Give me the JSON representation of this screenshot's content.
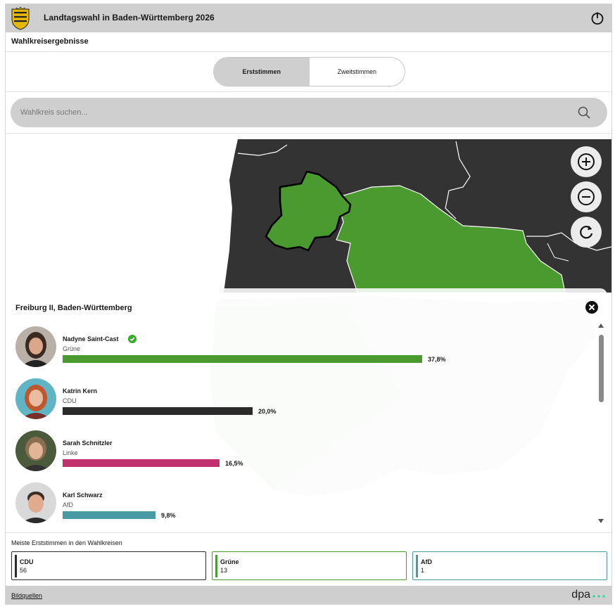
{
  "header": {
    "title": "Landtagswahl in Baden-Württemberg 2026"
  },
  "section": {
    "title": "Wahlkreisergebnisse"
  },
  "tabs": [
    {
      "label": "Erststimmen",
      "active": true
    },
    {
      "label": "Zweitstimmen",
      "active": false
    }
  ],
  "search": {
    "placeholder": "Wahlkreis suchen..."
  },
  "map": {
    "colors": {
      "other": "#333333",
      "gruene": "#4a9a2f",
      "background": "#ffffff"
    }
  },
  "result": {
    "title": "Freiburg II, Baden-Württemberg",
    "candidates": [
      {
        "name": "Nadyne Saint-Cast",
        "party": "Grüne",
        "percent_label": "37,8%",
        "percent": 37.8,
        "color": "#4a9a2f",
        "winner": true
      },
      {
        "name": "Katrin Kern",
        "party": "CDU",
        "percent_label": "20,0%",
        "percent": 20.0,
        "color": "#2b2b2b",
        "winner": false
      },
      {
        "name": "Sarah Schnitzler",
        "party": "Linke",
        "percent_label": "16,5%",
        "percent": 16.5,
        "color": "#c0316e",
        "winner": false
      },
      {
        "name": "Karl Schwarz",
        "party": "AfD",
        "percent_label": "9,8%",
        "percent": 9.8,
        "color": "#4a9aa6",
        "winner": false
      }
    ]
  },
  "summary": {
    "label": "Meiste Erststimmen in den Wahlkreisen",
    "cards": [
      {
        "party": "CDU",
        "count": "56",
        "color": "#2b2b2b"
      },
      {
        "party": "Grüne",
        "count": "13",
        "color": "#4a9a2f"
      },
      {
        "party": "AfD",
        "count": "1",
        "color": "#4a9aa6"
      }
    ]
  },
  "footer": {
    "credits": "Bildquellen",
    "brand": "dpa",
    "brand_dot_color": "#2dd4a6"
  }
}
